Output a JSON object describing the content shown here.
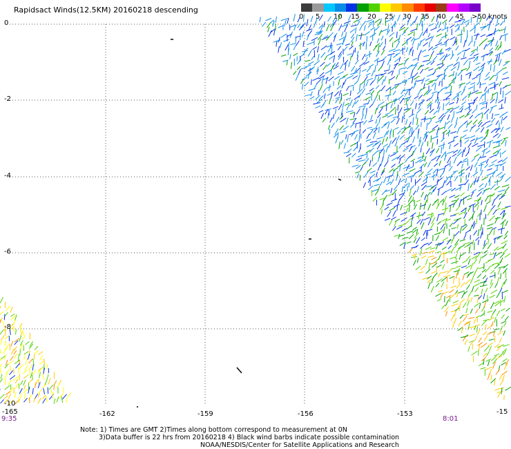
{
  "title": "Rapidsact Winds(12.5KM) 20160218 descending",
  "color_scale": {
    "colors": [
      "#3c3c3c",
      "#9a9a9a",
      "#00c8ff",
      "#0a8ce6",
      "#0032e6",
      "#00a000",
      "#50d200",
      "#ffff00",
      "#ffc800",
      "#ff8c00",
      "#ff3c00",
      "#e60000",
      "#9b3c14",
      "#ff00ff",
      "#b400ff",
      "#7800c8"
    ],
    "labels": [
      "0",
      "5",
      "10",
      "15",
      "20",
      "25",
      "30",
      "35",
      "40",
      "45",
      ">50 knots"
    ]
  },
  "axes": {
    "y_ticks": [
      "0",
      "-2",
      "-4",
      "-6",
      "-8",
      "-10"
    ],
    "x_ticks": [
      "-165",
      "-162",
      "-159",
      "-156",
      "-153",
      "-15"
    ]
  },
  "times": {
    "left": "9:35",
    "right": "8:01"
  },
  "notes": [
    "Note: 1) Times are GMT 2)Times along bottom correspond to measurement at 0N",
    "3)Data buffer is 22 hrs from 20160218 4) Black wind barbs indicate possible contamination",
    "NOAA/NESDIS/Center for Satellite Applications and Research"
  ]
}
